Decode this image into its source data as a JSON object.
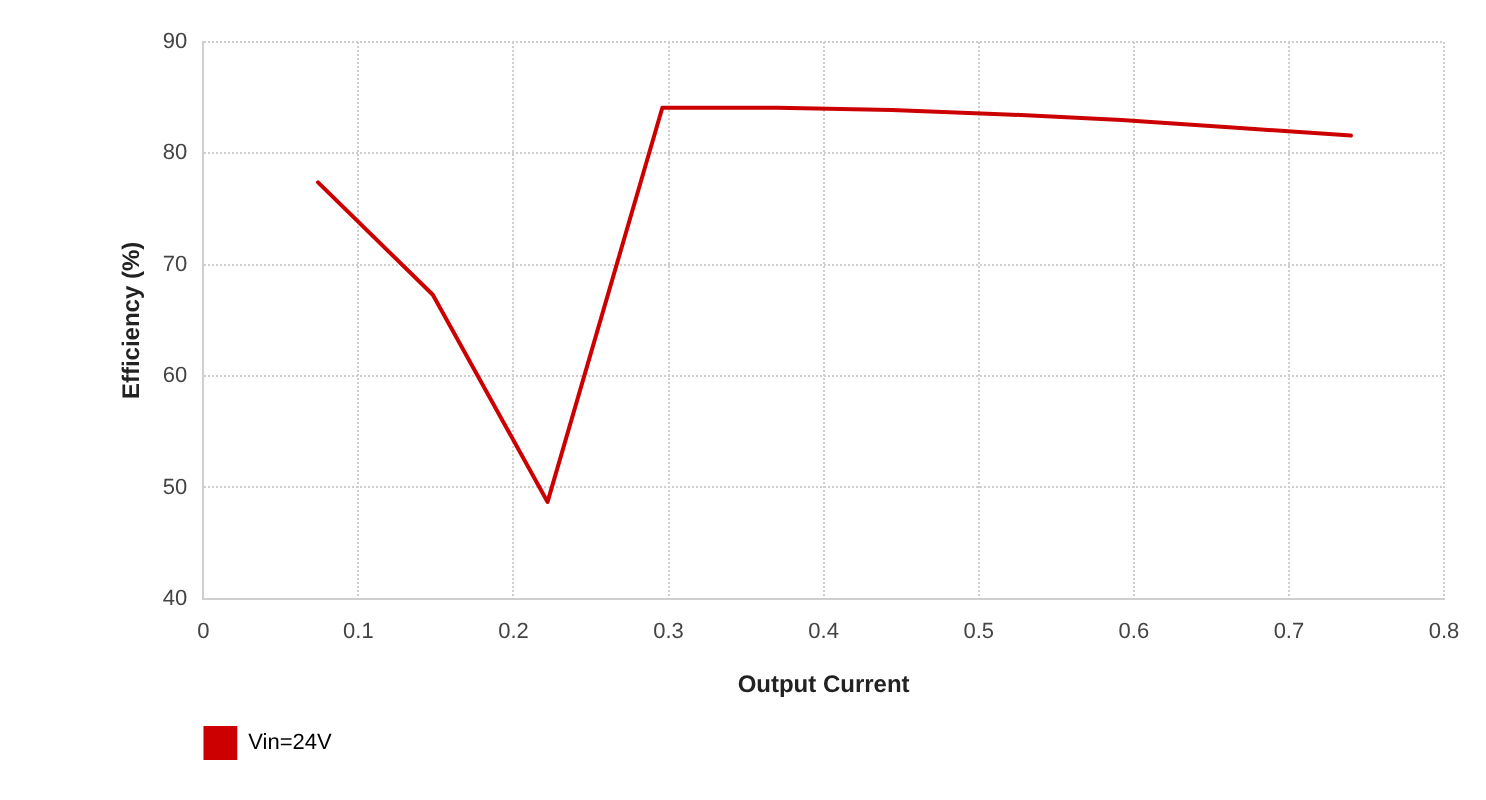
{
  "chart_data": {
    "type": "line",
    "xlabel": "Output Current",
    "ylabel": "Efficiency (%)",
    "x": [
      0.074,
      0.148,
      0.222,
      0.296,
      0.37,
      0.444,
      0.518,
      0.592,
      0.666,
      0.74
    ],
    "series": [
      {
        "name": "Vin=24V",
        "color": "#cc0000",
        "values": [
          77.4,
          67.3,
          48.7,
          84.1,
          84.1,
          83.9,
          83.5,
          83.0,
          82.3,
          81.6
        ]
      }
    ],
    "xlim": [
      0,
      0.8
    ],
    "xticks": [
      0,
      0.1,
      0.2,
      0.3,
      0.4,
      0.5,
      0.6,
      0.7,
      0.8
    ],
    "ylim": [
      40,
      90
    ],
    "yticks": [
      40,
      50,
      60,
      70,
      80,
      90
    ],
    "grid": true,
    "legend": "bottom left",
    "marker": "none",
    "line_style": "solid"
  }
}
